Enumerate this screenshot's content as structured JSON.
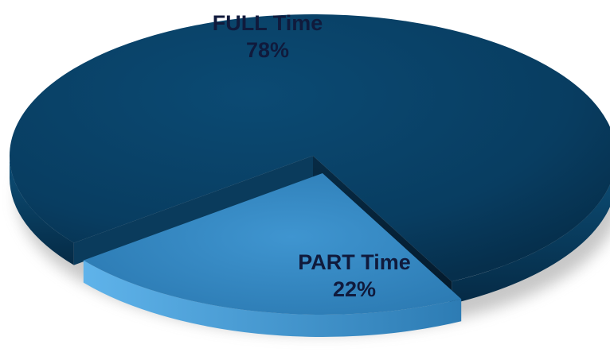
{
  "chart_data": {
    "type": "pie",
    "slices": [
      {
        "name": "FULL Time",
        "value": 78,
        "label": "78%",
        "color": "#0a4267"
      },
      {
        "name": "PART Time",
        "value": 22,
        "label": "22%",
        "color": "#2e7fb8"
      }
    ],
    "exploded_slice": "PART Time",
    "style": "3d",
    "title": "",
    "legend": "none"
  },
  "labels": {
    "full_name": "FULL Time",
    "full_value": "78%",
    "part_name": "PART Time",
    "part_value": "22%"
  }
}
